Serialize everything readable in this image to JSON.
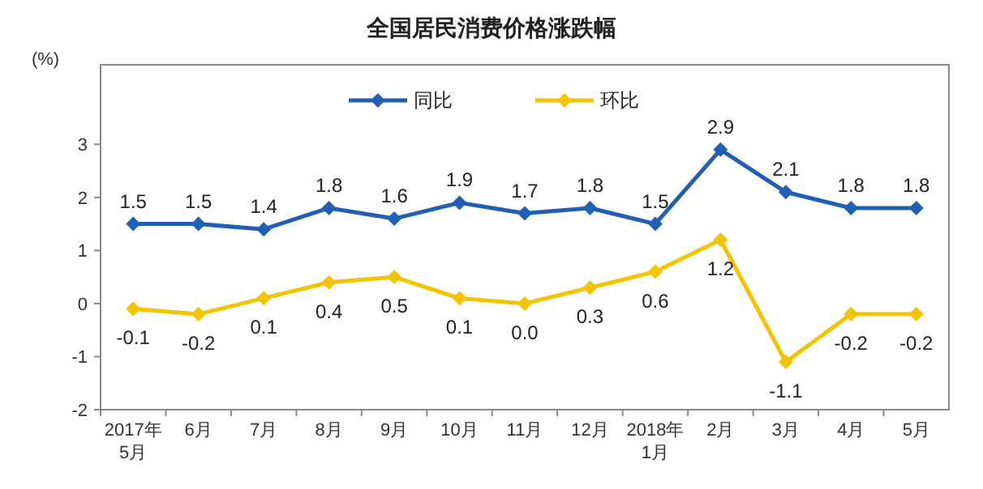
{
  "chart_data": {
    "type": "line",
    "title": "全国居民消费价格涨跌幅",
    "ylabel": "(%)",
    "categories": [
      "2017年\n5月",
      "6月",
      "7月",
      "8月",
      "9月",
      "10月",
      "11月",
      "12月",
      "2018年\n1月",
      "2月",
      "3月",
      "4月",
      "5月"
    ],
    "series": [
      {
        "name": "同比",
        "color": "#1f5fb4",
        "values": [
          1.5,
          1.5,
          1.4,
          1.8,
          1.6,
          1.9,
          1.7,
          1.8,
          1.5,
          2.9,
          2.1,
          1.8,
          1.8
        ],
        "value_labels": [
          "1.5",
          "1.5",
          "1.4",
          "1.8",
          "1.6",
          "1.9",
          "1.7",
          "1.8",
          "1.5",
          "2.9",
          "2.1",
          "1.8",
          "1.8"
        ]
      },
      {
        "name": "环比",
        "color": "#f5c400",
        "values": [
          -0.1,
          -0.2,
          0.1,
          0.4,
          0.5,
          0.1,
          0.0,
          0.3,
          0.6,
          1.2,
          -1.1,
          -0.2,
          -0.2
        ],
        "value_labels": [
          "-0.1",
          "-0.2",
          "0.1",
          "0.4",
          "0.5",
          "0.1",
          "0.0",
          "0.3",
          "0.6",
          "1.2",
          "-1.1",
          "-0.2",
          "-0.2"
        ]
      }
    ],
    "ylim": [
      -2,
      4.5
    ],
    "yticks": [
      -2,
      -1,
      0,
      1,
      2,
      3
    ],
    "marker": "diamond",
    "legend": "top",
    "grid": false
  }
}
